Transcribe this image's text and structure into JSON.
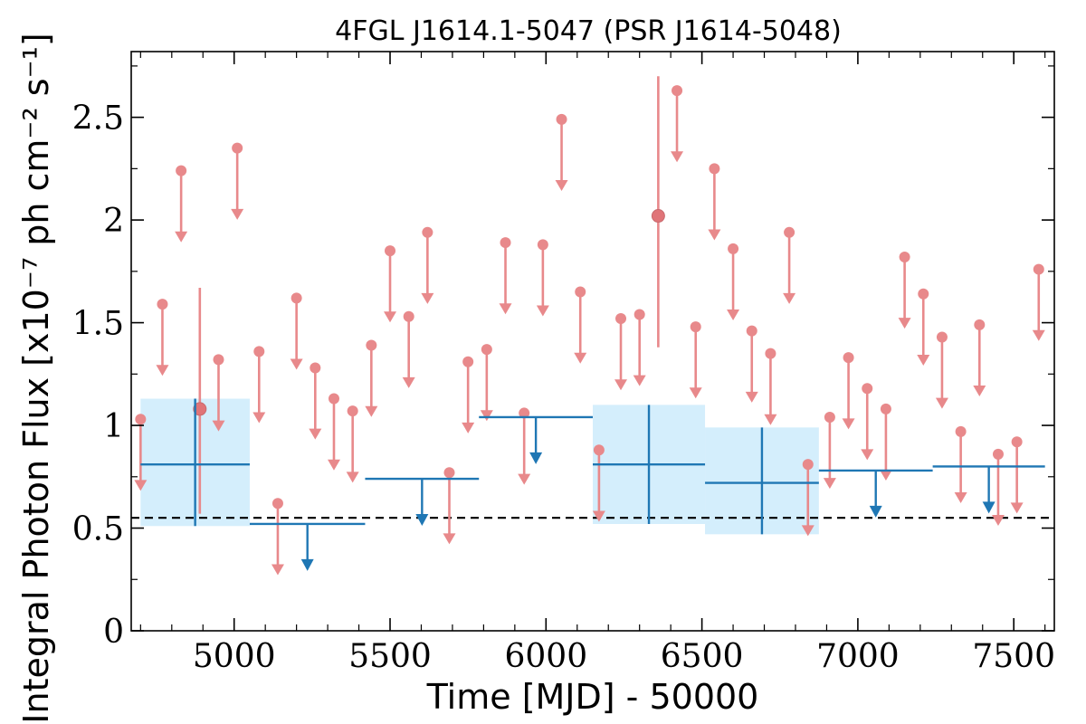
{
  "chart_data": {
    "type": "scatter",
    "title": "4FGL J1614.1-5047 (PSR J1614-5048)",
    "xlabel": "Time [MJD] - 50000",
    "ylabel": "Integral Photon Flux [x10⁻⁷ ph cm⁻² s⁻¹]",
    "xlim": [
      4670,
      7630
    ],
    "ylim": [
      0,
      2.82
    ],
    "x_ticks": [
      5000,
      5500,
      6000,
      6500,
      7000,
      7500
    ],
    "x_tick_labels": [
      "5000",
      "5500",
      "6000",
      "6500",
      "7000",
      "7500"
    ],
    "y_ticks": [
      0,
      0.5,
      1,
      1.5,
      2,
      2.5
    ],
    "y_tick_labels": [
      "0",
      "0.5",
      "1",
      "1.5",
      "2",
      "2.5"
    ],
    "reference_line": {
      "y": 0.55,
      "style": "dashed",
      "color": "#000000"
    },
    "series": [
      {
        "kind": "short-bins",
        "color": "#e8898b",
        "upper_limits": [
          [
            4700,
            1.03
          ],
          [
            4770,
            1.59
          ],
          [
            4830,
            2.24
          ],
          [
            4950,
            1.32
          ],
          [
            5010,
            2.35
          ],
          [
            5080,
            1.36
          ],
          [
            5140,
            0.62
          ],
          [
            5200,
            1.62
          ],
          [
            5260,
            1.28
          ],
          [
            5320,
            1.13
          ],
          [
            5380,
            1.07
          ],
          [
            5440,
            1.39
          ],
          [
            5500,
            1.85
          ],
          [
            5560,
            1.53
          ],
          [
            5620,
            1.94
          ],
          [
            5690,
            0.77
          ],
          [
            5750,
            1.31
          ],
          [
            5810,
            1.37
          ],
          [
            5870,
            1.89
          ],
          [
            5930,
            1.06
          ],
          [
            5990,
            1.88
          ],
          [
            6050,
            2.49
          ],
          [
            6110,
            1.65
          ],
          [
            6170,
            0.88
          ],
          [
            6240,
            1.52
          ],
          [
            6300,
            1.54
          ],
          [
            6420,
            2.63
          ],
          [
            6480,
            1.48
          ],
          [
            6540,
            2.25
          ],
          [
            6600,
            1.86
          ],
          [
            6660,
            1.46
          ],
          [
            6720,
            1.35
          ],
          [
            6780,
            1.94
          ],
          [
            6840,
            0.81
          ],
          [
            6910,
            1.04
          ],
          [
            6970,
            1.33
          ],
          [
            7030,
            1.18
          ],
          [
            7090,
            1.08
          ],
          [
            7150,
            1.82
          ],
          [
            7210,
            1.64
          ],
          [
            7270,
            1.43
          ],
          [
            7330,
            0.97
          ],
          [
            7390,
            1.49
          ],
          [
            7450,
            0.86
          ],
          [
            7510,
            0.92
          ],
          [
            7580,
            1.76
          ]
        ],
        "detections": [
          {
            "x": 4890,
            "y": 1.08,
            "ylo": 0.57,
            "yhi": 1.67
          },
          {
            "x": 6360,
            "y": 2.02,
            "ylo": 1.38,
            "yhi": 2.7
          }
        ]
      },
      {
        "kind": "long-bins",
        "color": "#1f77b4",
        "band_color": "#d4eefc",
        "detections": [
          {
            "x0": 4700,
            "x1": 5050,
            "y": 0.81,
            "ylo": 0.51,
            "yhi": 1.13
          },
          {
            "x0": 6150,
            "x1": 6510,
            "y": 0.81,
            "ylo": 0.52,
            "yhi": 1.1
          },
          {
            "x0": 6510,
            "x1": 6875,
            "y": 0.72,
            "ylo": 0.47,
            "yhi": 0.99
          }
        ],
        "upper_limits": [
          {
            "x0": 5050,
            "x1": 5420,
            "y": 0.52
          },
          {
            "x0": 5420,
            "x1": 5785,
            "y": 0.74
          },
          {
            "x0": 5785,
            "x1": 6150,
            "y": 1.04
          },
          {
            "x0": 6875,
            "x1": 7240,
            "y": 0.78
          },
          {
            "x0": 7240,
            "x1": 7600,
            "y": 0.8
          }
        ]
      }
    ]
  }
}
